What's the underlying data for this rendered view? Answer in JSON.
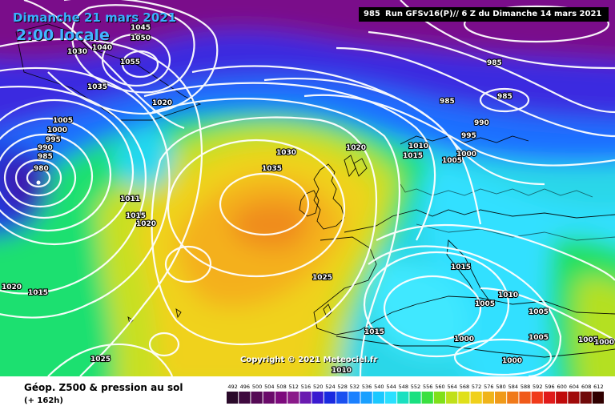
{
  "header": {
    "title": "Dimanche 21 mars 2021",
    "local_time": "2:00 locale",
    "run_info": "Run GFSv16(P)// 6 Z du Dimanche 14 mars 2021",
    "run_pressure": "985"
  },
  "copyright": "Copyright © 2021 Meteociel.fr",
  "legend": {
    "title": "Géop. Z500 & pression au sol",
    "subtitle": "(+ 162h)",
    "scale_values": [
      492,
      496,
      500,
      504,
      508,
      512,
      516,
      520,
      524,
      528,
      532,
      536,
      540,
      544,
      548,
      552,
      556,
      560,
      564,
      568,
      572,
      576,
      580,
      584,
      588,
      592,
      596,
      600,
      604,
      608,
      612
    ],
    "scale_colors": [
      "#2a0a2a",
      "#3f0a3f",
      "#550a55",
      "#6a0a6a",
      "#7d0a7d",
      "#8a1a8a",
      "#6a1ab0",
      "#3a1ad0",
      "#1a2ae0",
      "#1a50f0",
      "#1a80ff",
      "#1aa0ff",
      "#1ac8ff",
      "#2ae0ff",
      "#1ae0c0",
      "#1ae080",
      "#3ae040",
      "#80e01a",
      "#c0e01a",
      "#e0e01a",
      "#f0d01a",
      "#f0b41a",
      "#f09a1a",
      "#f07a1a",
      "#f05a1a",
      "#f03a1a",
      "#e01a1a",
      "#c00a0a",
      "#a00a0a",
      "#700a0a",
      "#300000"
    ]
  },
  "isobars": [
    {
      "value": "1045"
    },
    {
      "value": "1050"
    },
    {
      "value": "1030"
    },
    {
      "value": "1040"
    },
    {
      "value": "1055"
    },
    {
      "value": "1035"
    },
    {
      "value": "1020"
    },
    {
      "value": "1005"
    },
    {
      "value": "1000"
    },
    {
      "value": "995"
    },
    {
      "value": "990"
    },
    {
      "value": "985"
    },
    {
      "value": "980"
    },
    {
      "value": "1030"
    },
    {
      "value": "1035"
    },
    {
      "value": "1020"
    },
    {
      "value": "1010"
    },
    {
      "value": "1015"
    },
    {
      "value": "1000"
    },
    {
      "value": "1005"
    },
    {
      "value": "985"
    },
    {
      "value": "985"
    },
    {
      "value": "985"
    },
    {
      "value": "990"
    },
    {
      "value": "995"
    },
    {
      "value": "1011"
    },
    {
      "value": "1015"
    },
    {
      "value": "1020"
    },
    {
      "value": "1020"
    },
    {
      "value": "1015"
    },
    {
      "value": "1025"
    },
    {
      "value": "1015"
    },
    {
      "value": "1025"
    },
    {
      "value": "1010"
    },
    {
      "value": "1015"
    },
    {
      "value": "1010"
    },
    {
      "value": "1005"
    },
    {
      "value": "1005"
    },
    {
      "value": "1000"
    },
    {
      "value": "1000"
    },
    {
      "value": "1005"
    },
    {
      "value": "1005"
    },
    {
      "value": "1000"
    }
  ]
}
